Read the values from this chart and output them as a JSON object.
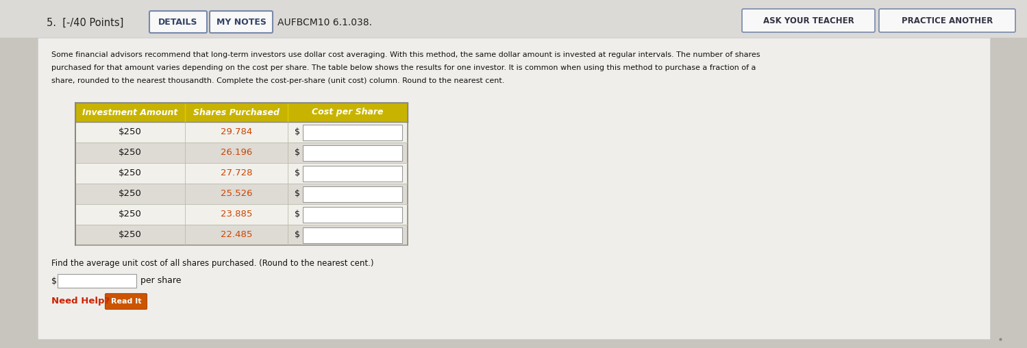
{
  "title_left": "5.  [-/40 Points]",
  "btn_details": "DETAILS",
  "btn_notes": "MY NOTES",
  "course_code": "AUFBCM10 6.1.038.",
  "btn_teacher": "ASK YOUR TEACHER",
  "btn_practice": "PRACTICE ANOTHER",
  "para1": "Some financial advisors recommend that long-term investors use dollar cost averaging. With this method, the same dollar amount is invested at regular intervals. The number of shares",
  "para2": "purchased for that amount varies depending on the cost per share. The table below shows the results for one investor. It is common when using this method to purchase a fraction of a",
  "para3": "share, rounded to the nearest thousandth. Complete the cost-per-share (unit cost) column. Round to the nearest cent.",
  "col_headers": [
    "Investment Amount",
    "Shares Purchased",
    "Cost per Share"
  ],
  "rows": [
    [
      "$250",
      "29.784",
      "$"
    ],
    [
      "$250",
      "26.196",
      "$"
    ],
    [
      "$250",
      "27.728",
      "$"
    ],
    [
      "$250",
      "25.526",
      "$"
    ],
    [
      "$250",
      "23.885",
      "$"
    ],
    [
      "$250",
      "22.485",
      "$"
    ]
  ],
  "footer_text": "Find the average unit cost of all shares purchased. (Round to the nearest cent.)",
  "footer_label": "$",
  "footer_suffix": "per share",
  "need_help": "Need Help?",
  "read_it": "Read It",
  "outer_bg": "#c8c5c0",
  "top_bar_bg": "#d8d5d0",
  "content_bg": "#f0eeeb",
  "table_header_bg": "#c8b400",
  "table_header_bg2": "#8c9400",
  "row_bg_even": "#f2f0eb",
  "row_bg_odd": "#dedad4",
  "shares_color": "#cc4400",
  "btn_text_color": "#334466",
  "btn_border_color": "#8899aa",
  "course_color": "#222222",
  "need_help_color": "#cc2200",
  "read_it_bg": "#cc5500",
  "dot_color": "#888888",
  "table_border": "#888878",
  "text_color": "#111111"
}
